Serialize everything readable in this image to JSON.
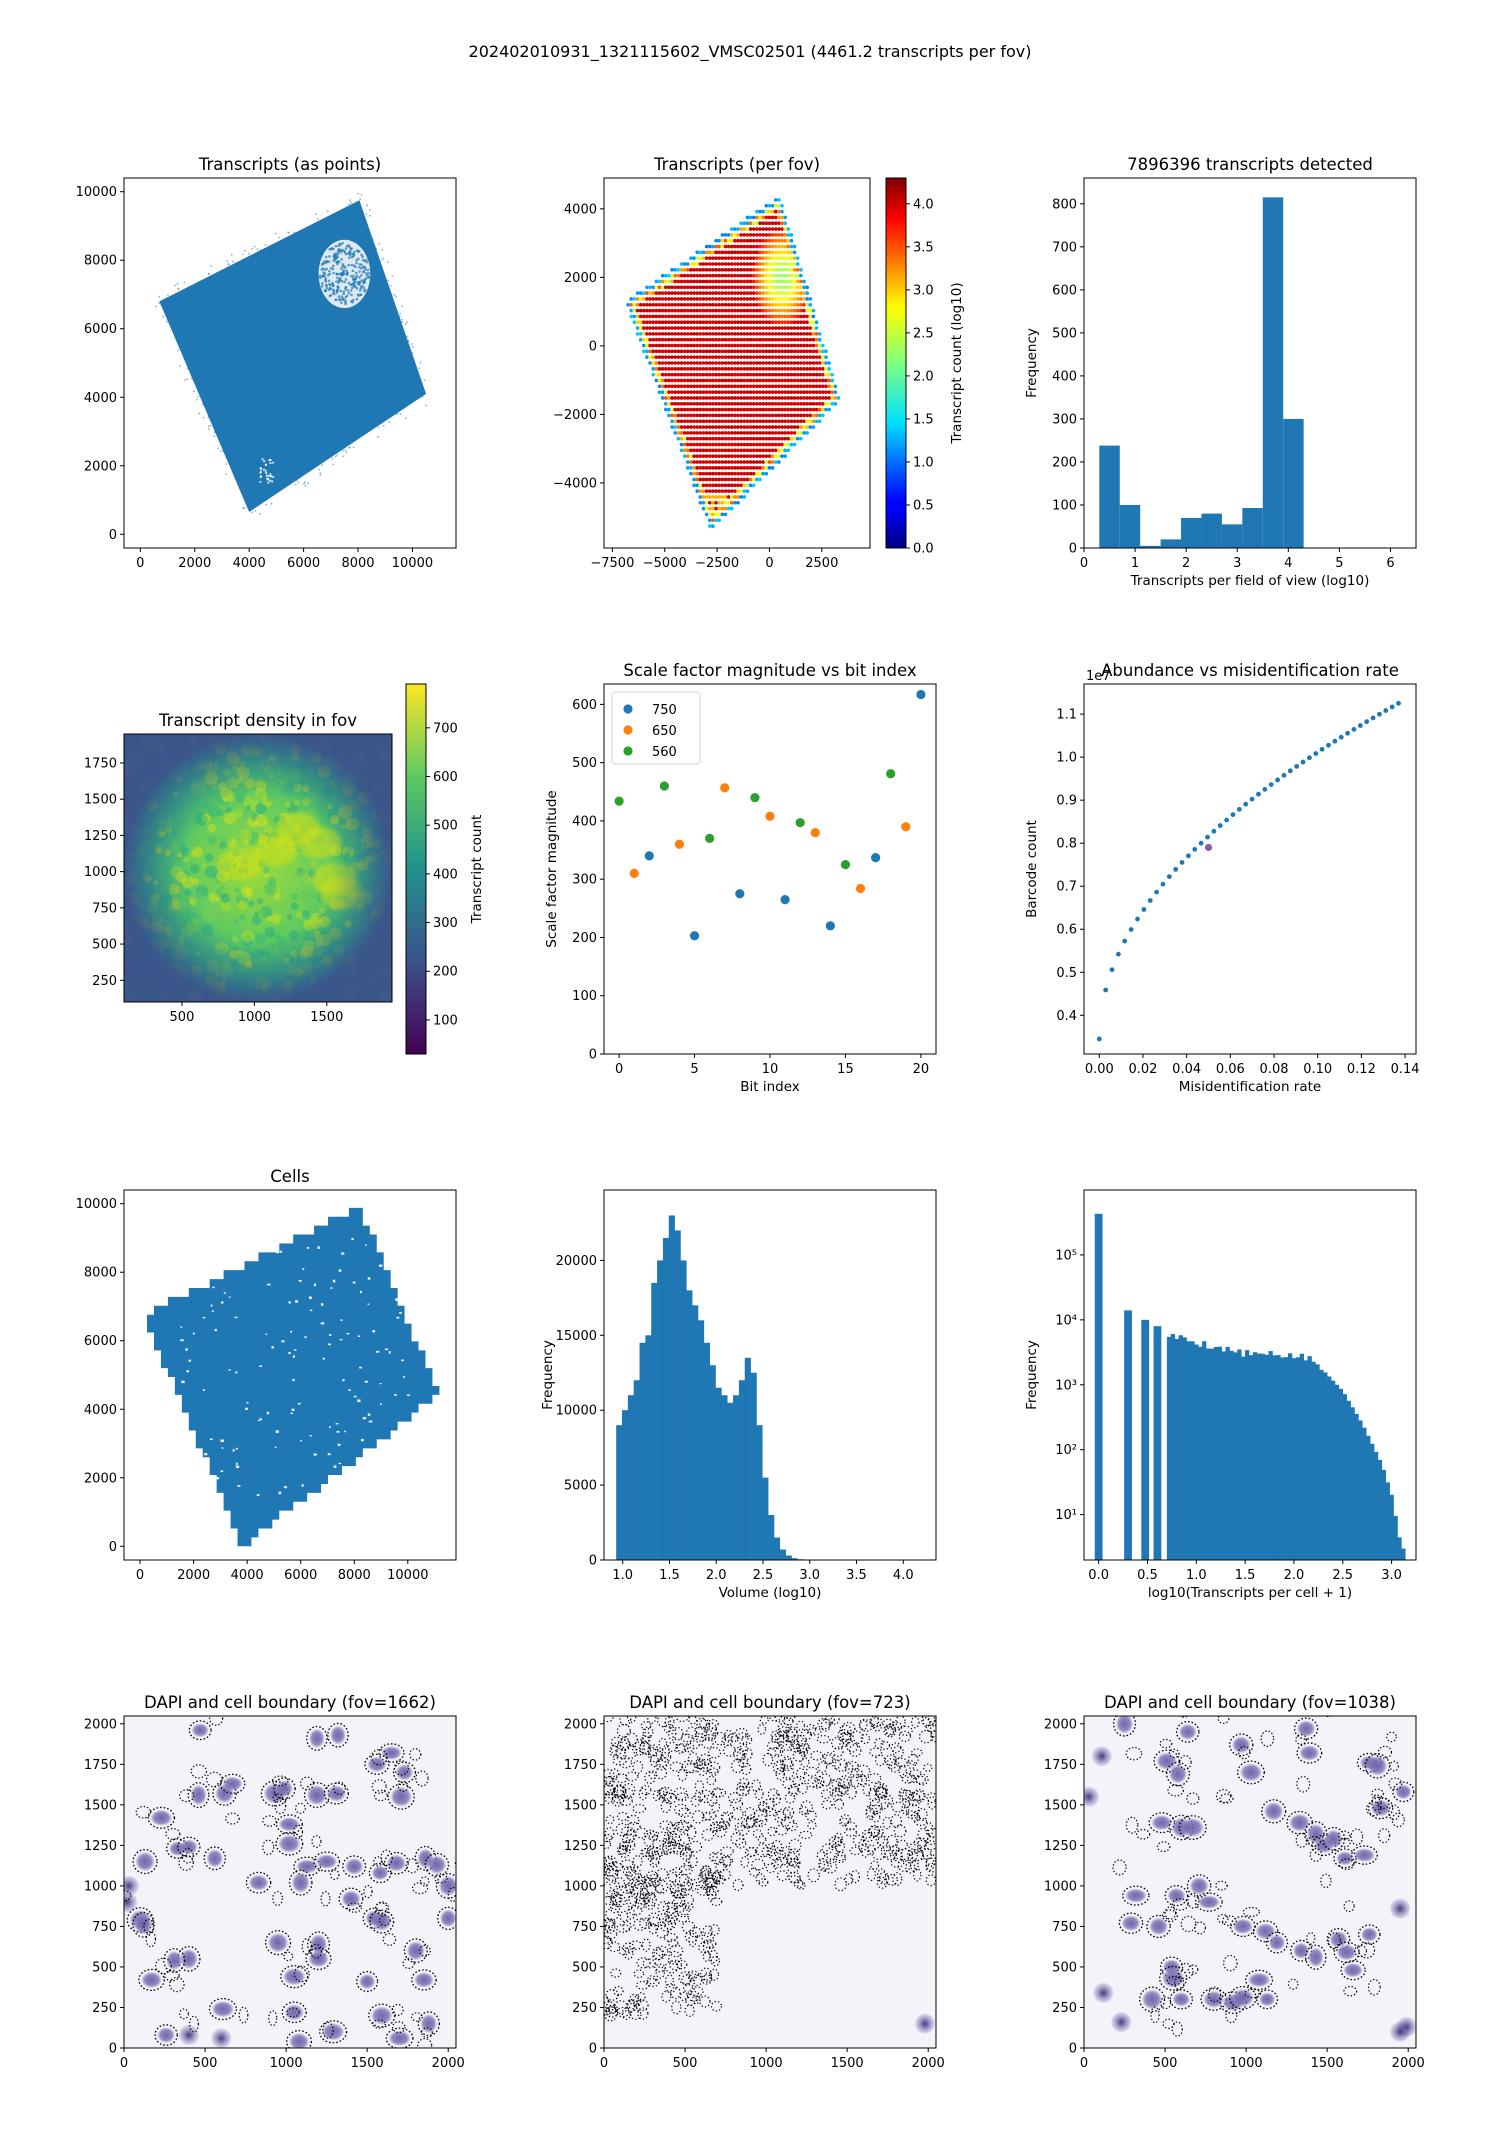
{
  "suptitle": "202402010931_1321115602_VMSC02501 (4461.2 transcripts per fov)",
  "colors": {
    "tab_blue": "#1f77b4",
    "tab_orange": "#ff7f0e",
    "tab_green": "#2ca02c",
    "dapi": "#5a4d9a"
  },
  "chart_data": [
    {
      "id": "transcripts-points",
      "type": "scatter",
      "title": "Transcripts (as points)",
      "xlabel": "",
      "ylabel": "",
      "xlim": [
        -600,
        11600
      ],
      "ylim": [
        -400,
        10400
      ],
      "xticks": [
        0,
        2000,
        4000,
        6000,
        8000,
        10000
      ],
      "yticks": [
        0,
        2000,
        4000,
        6000,
        8000,
        10000
      ],
      "region_outline": [
        [
          4000,
          650
        ],
        [
          10500,
          4100
        ],
        [
          8050,
          9750
        ],
        [
          700,
          6800
        ]
      ],
      "hole": {
        "center": [
          7500,
          7600
        ],
        "radius": 950
      }
    },
    {
      "id": "transcripts-per-fov",
      "type": "scatter",
      "title": "Transcripts (per fov)",
      "xlabel": "",
      "ylabel": "",
      "xlim": [
        -7900,
        4800
      ],
      "ylim": [
        -5900,
        4900
      ],
      "xticks": [
        -7500,
        -5000,
        -2500,
        0,
        2500
      ],
      "xtick_labels": [
        "−7500",
        "−5000",
        "−2500",
        "0",
        "2500"
      ],
      "yticks": [
        -4000,
        -2000,
        0,
        2000,
        4000
      ],
      "ytick_labels": [
        "−4000",
        "−2000",
        "0",
        "2000",
        "4000"
      ],
      "region_outline": [
        [
          -2800,
          -5400
        ],
        [
          3400,
          -1600
        ],
        [
          500,
          4400
        ],
        [
          -6900,
          1300
        ]
      ],
      "bright_spot": {
        "center": [
          600,
          2000
        ],
        "radius": 1400
      },
      "colorbar": {
        "label": "Transcript count (log10)",
        "range": [
          0,
          4.3
        ],
        "ticks": [
          0,
          0.5,
          1.0,
          1.5,
          2.0,
          2.5,
          3.0,
          3.5,
          4.0
        ],
        "tick_labels": [
          "0.0",
          "0.5",
          "1.0",
          "1.5",
          "2.0",
          "2.5",
          "3.0",
          "3.5",
          "4.0"
        ],
        "colormap": "jet"
      }
    },
    {
      "id": "transcripts-histogram",
      "type": "bar",
      "title": "7896396 transcripts detected",
      "xlabel": "Transcripts per field of view (log10)",
      "ylabel": "Frequency",
      "xlim": [
        0,
        6.5
      ],
      "ylim": [
        0,
        860
      ],
      "xticks": [
        0,
        1,
        2,
        3,
        4,
        5,
        6
      ],
      "yticks": [
        0,
        100,
        200,
        300,
        400,
        500,
        600,
        700,
        800
      ],
      "bin_edges": [
        0.3,
        0.7,
        1.1,
        1.5,
        1.9,
        2.3,
        2.7,
        3.1,
        3.5,
        3.9,
        4.3
      ],
      "values": [
        238,
        100,
        5,
        20,
        70,
        80,
        55,
        93,
        815,
        300
      ]
    },
    {
      "id": "transcript-density",
      "type": "heatmap",
      "title": "Transcript density in fov",
      "xlabel": "",
      "ylabel": "",
      "xlim": [
        100,
        1950
      ],
      "ylim": [
        100,
        1950
      ],
      "xticks": [
        500,
        1000,
        1500
      ],
      "yticks": [
        250,
        500,
        750,
        1000,
        1250,
        1500,
        1750
      ],
      "colorbar": {
        "label": "Transcript count",
        "range": [
          30,
          790
        ],
        "ticks": [
          100,
          200,
          300,
          400,
          500,
          600,
          700
        ],
        "colormap": "viridis"
      }
    },
    {
      "id": "scale-factor",
      "type": "scatter",
      "title": "Scale factor magnitude vs bit index",
      "xlabel": "Bit index",
      "ylabel": "Scale factor magnitude",
      "xlim": [
        -1,
        21
      ],
      "ylim": [
        0,
        635
      ],
      "xticks": [
        0,
        5,
        10,
        15,
        20
      ],
      "yticks": [
        0,
        100,
        200,
        300,
        400,
        500,
        600
      ],
      "legend": "top-left",
      "series": [
        {
          "name": "750",
          "x": [
            2,
            5,
            8,
            11,
            14,
            17,
            20
          ],
          "y": [
            340,
            203,
            275,
            265,
            220,
            337,
            617
          ]
        },
        {
          "name": "650",
          "x": [
            1,
            4,
            7,
            10,
            13,
            16,
            19
          ],
          "y": [
            310,
            360,
            457,
            408,
            380,
            284,
            390
          ]
        },
        {
          "name": "560",
          "x": [
            0,
            3,
            6,
            9,
            12,
            15,
            18
          ],
          "y": [
            434,
            460,
            370,
            440,
            397,
            325,
            481
          ]
        }
      ]
    },
    {
      "id": "abundance",
      "type": "scatter",
      "title": "Abundance vs misidentification rate",
      "xlabel": "Misidentification rate",
      "ylabel": "Barcode count",
      "y_offset_label": "1e7",
      "xlim": [
        -0.007,
        0.145
      ],
      "ylim": [
        0.31,
        1.17
      ],
      "xticks": [
        0.0,
        0.02,
        0.04,
        0.06,
        0.08,
        0.1,
        0.12,
        0.14
      ],
      "xtick_labels": [
        "0.00",
        "0.02",
        "0.04",
        "0.06",
        "0.08",
        "0.10",
        "0.12",
        "0.14"
      ],
      "yticks": [
        0.4,
        0.5,
        0.6,
        0.7,
        0.8,
        0.9,
        1.0,
        1.1
      ],
      "ytick_labels": [
        "0.4",
        "0.5",
        "0.6",
        "0.7",
        "0.8",
        "0.9",
        "1.0",
        "1.1"
      ],
      "curve": {
        "x_start": 0.0,
        "x_end": 0.137,
        "points": 48,
        "y_start": 0.345,
        "y_end": 1.125
      },
      "highlight": {
        "x": 0.05,
        "y": 0.79
      }
    },
    {
      "id": "cells",
      "type": "scatter",
      "title": "Cells",
      "xlabel": "",
      "ylabel": "",
      "xlim": [
        -600,
        11800
      ],
      "ylim": [
        -400,
        10400
      ],
      "xticks": [
        0,
        2000,
        4000,
        6000,
        8000,
        10000
      ],
      "yticks": [
        0,
        2000,
        4000,
        6000,
        8000,
        10000
      ],
      "region_outline": [
        [
          3800,
          0
        ],
        [
          11200,
          4500
        ],
        [
          8200,
          9900
        ],
        [
          100,
          6700
        ]
      ]
    },
    {
      "id": "volume-histogram",
      "type": "bar",
      "title": "",
      "xlabel": "Volume (log10)",
      "ylabel": "Frequency",
      "xlim": [
        0.8,
        4.35
      ],
      "ylim": [
        0,
        24700
      ],
      "xticks": [
        1.0,
        1.5,
        2.0,
        2.5,
        3.0,
        3.5,
        4.0
      ],
      "xtick_labels": [
        "1.0",
        "1.5",
        "2.0",
        "2.5",
        "3.0",
        "3.5",
        "4.0"
      ],
      "yticks": [
        0,
        5000,
        10000,
        15000,
        20000
      ],
      "bin_start": 0.93,
      "bin_width": 0.0625,
      "values": [
        9000,
        10000,
        11000,
        12000,
        14500,
        15000,
        18500,
        20000,
        21500,
        23000,
        22000,
        20000,
        18000,
        17000,
        16000,
        14500,
        13000,
        11500,
        11000,
        10500,
        11000,
        12000,
        13500,
        12500,
        9000,
        5500,
        3000,
        1500,
        700,
        300,
        120,
        50,
        20,
        10,
        5,
        2,
        1
      ]
    },
    {
      "id": "transcripts-per-cell",
      "type": "bar",
      "title": "",
      "xlabel": "log10(Transcripts per cell + 1)",
      "ylabel": "Frequency",
      "yscale": "log",
      "xlim": [
        -0.15,
        3.25
      ],
      "ylim": [
        2,
        1000000
      ],
      "xticks": [
        0.0,
        0.5,
        1.0,
        1.5,
        2.0,
        2.5,
        3.0
      ],
      "xtick_labels": [
        "0.0",
        "0.5",
        "1.0",
        "1.5",
        "2.0",
        "2.5",
        "3.0"
      ],
      "yticks": [
        10,
        100,
        1000,
        10000,
        100000
      ],
      "ytick_labels": [
        "10¹",
        "10²",
        "10³",
        "10⁴",
        "10⁵"
      ],
      "isolated_bars": [
        {
          "x": 0.0,
          "value": 430000
        },
        {
          "x": 0.301,
          "value": 14000
        },
        {
          "x": 0.477,
          "value": 10000
        },
        {
          "x": 0.602,
          "value": 8000
        }
      ],
      "continuous": {
        "x_start": 0.699,
        "bin_width": 0.04,
        "anchors": [
          [
            0.7,
            6000
          ],
          [
            1.0,
            4500
          ],
          [
            1.5,
            3000
          ],
          [
            2.0,
            2800
          ],
          [
            2.2,
            2400
          ],
          [
            2.5,
            800
          ],
          [
            2.7,
            250
          ],
          [
            2.9,
            60
          ],
          [
            3.0,
            20
          ],
          [
            3.1,
            3
          ]
        ]
      }
    },
    {
      "id": "dapi-1662",
      "type": "scatter",
      "title": "DAPI and cell boundary (fov=1662)",
      "xlabel": "",
      "ylabel": "",
      "xlim": [
        0,
        2048
      ],
      "ylim": [
        0,
        2048
      ],
      "xticks": [
        0,
        500,
        1000,
        1500,
        2000
      ],
      "yticks": [
        0,
        250,
        500,
        750,
        1000,
        1250,
        1500,
        1750,
        2000
      ],
      "cells": [
        [
          470,
          1960
        ],
        [
          1190,
          1910
        ],
        [
          1320,
          1930
        ],
        [
          1650,
          1820
        ],
        [
          1730,
          1700
        ],
        [
          1710,
          1550
        ],
        [
          230,
          1420
        ],
        [
          460,
          1560
        ],
        [
          620,
          1570
        ],
        [
          670,
          1630
        ],
        [
          930,
          1570
        ],
        [
          990,
          1600
        ],
        [
          1190,
          1560
        ],
        [
          1310,
          1570
        ],
        [
          1560,
          1750
        ],
        [
          130,
          1150
        ],
        [
          330,
          1230
        ],
        [
          400,
          1240
        ],
        [
          560,
          1170
        ],
        [
          1020,
          1380
        ],
        [
          1020,
          1260
        ],
        [
          1130,
          1120
        ],
        [
          1250,
          1150
        ],
        [
          1420,
          1120
        ],
        [
          1680,
          1140
        ],
        [
          1860,
          1170
        ],
        [
          1930,
          1130
        ],
        [
          830,
          1020
        ],
        [
          1090,
          1020
        ],
        [
          1400,
          920
        ],
        [
          1580,
          1080
        ],
        [
          1540,
          800
        ],
        [
          1590,
          780
        ],
        [
          100,
          790
        ],
        [
          120,
          760
        ],
        [
          950,
          650
        ],
        [
          1200,
          640
        ],
        [
          1200,
          550
        ],
        [
          1800,
          600
        ],
        [
          2000,
          800
        ],
        [
          2000,
          1000
        ],
        [
          400,
          550
        ],
        [
          310,
          540
        ],
        [
          170,
          420
        ],
        [
          1050,
          440
        ],
        [
          1500,
          410
        ],
        [
          1850,
          420
        ],
        [
          610,
          240
        ],
        [
          1050,
          220
        ],
        [
          1590,
          200
        ],
        [
          1880,
          150
        ],
        [
          260,
          80
        ],
        [
          1080,
          40
        ],
        [
          1290,
          100
        ],
        [
          1700,
          60
        ]
      ],
      "blobs": [
        [
          30,
          1000
        ],
        [
          20,
          900
        ],
        [
          600,
          60
        ],
        [
          400,
          80
        ]
      ]
    },
    {
      "id": "dapi-723",
      "type": "scatter",
      "title": "DAPI and cell boundary (fov=723)",
      "xlabel": "",
      "ylabel": "",
      "xlim": [
        0,
        2048
      ],
      "ylim": [
        0,
        2048
      ],
      "xticks": [
        0,
        500,
        1000,
        1500,
        2000
      ],
      "yticks": [
        0,
        250,
        500,
        750,
        1000,
        1250,
        1500,
        1750,
        2000
      ],
      "blobs": [
        [
          1980,
          150
        ]
      ]
    },
    {
      "id": "dapi-1038",
      "type": "scatter",
      "title": "DAPI and cell boundary (fov=1038)",
      "xlabel": "",
      "ylabel": "",
      "xlim": [
        0,
        2048
      ],
      "ylim": [
        0,
        2048
      ],
      "xticks": [
        0,
        500,
        1000,
        1500,
        2000
      ],
      "yticks": [
        0,
        250,
        500,
        750,
        1000,
        1250,
        1500,
        1750,
        2000
      ],
      "cells": [
        [
          250,
          2000
        ],
        [
          510,
          1770
        ],
        [
          580,
          1690
        ],
        [
          640,
          1950
        ],
        [
          970,
          1870
        ],
        [
          1030,
          1700
        ],
        [
          1370,
          1970
        ],
        [
          1390,
          1820
        ],
        [
          1760,
          1760
        ],
        [
          1810,
          1740
        ],
        [
          480,
          1390
        ],
        [
          600,
          1360
        ],
        [
          670,
          1360
        ],
        [
          1170,
          1460
        ],
        [
          1330,
          1390
        ],
        [
          1430,
          1320
        ],
        [
          1480,
          1250
        ],
        [
          1540,
          1290
        ],
        [
          1610,
          1170
        ],
        [
          1730,
          1190
        ],
        [
          1830,
          1480
        ],
        [
          1970,
          1580
        ],
        [
          320,
          940
        ],
        [
          570,
          940
        ],
        [
          710,
          1000
        ],
        [
          770,
          900
        ],
        [
          290,
          770
        ],
        [
          460,
          750
        ],
        [
          980,
          750
        ],
        [
          1120,
          720
        ],
        [
          1190,
          650
        ],
        [
          1340,
          600
        ],
        [
          1430,
          560
        ],
        [
          1570,
          670
        ],
        [
          1620,
          590
        ],
        [
          1760,
          700
        ],
        [
          540,
          500
        ],
        [
          550,
          430
        ],
        [
          420,
          300
        ],
        [
          600,
          300
        ],
        [
          800,
          300
        ],
        [
          920,
          280
        ],
        [
          980,
          310
        ],
        [
          1080,
          420
        ],
        [
          1130,
          300
        ],
        [
          1660,
          480
        ]
      ],
      "blobs": [
        [
          110,
          1800
        ],
        [
          30,
          1550
        ],
        [
          120,
          340
        ],
        [
          230,
          160
        ],
        [
          1950,
          860
        ],
        [
          1990,
          130
        ],
        [
          1950,
          100
        ]
      ]
    }
  ]
}
